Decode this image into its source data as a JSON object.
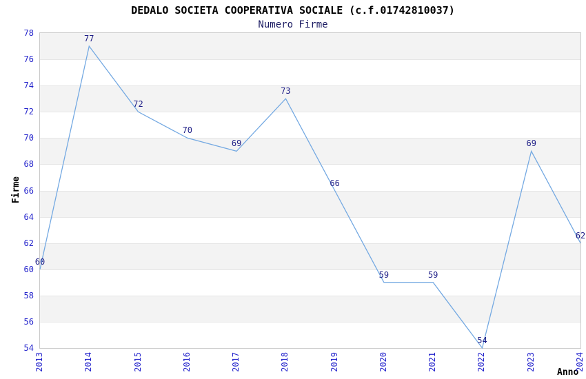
{
  "chart_data": {
    "type": "line",
    "title": "DEDALO SOCIETA COOPERATIVA SOCIALE (c.f.01742810037)",
    "subtitle": "Numero Firme",
    "xlabel": "Anno",
    "ylabel": "Firme",
    "categories": [
      "2013",
      "2014",
      "2015",
      "2016",
      "2017",
      "2018",
      "2019",
      "2020",
      "2021",
      "2022",
      "2023",
      "2024"
    ],
    "series": [
      {
        "name": "Numero Firme",
        "values": [
          60,
          77,
          72,
          70,
          69,
          73,
          66,
          59,
          59,
          54,
          69,
          62
        ]
      }
    ],
    "ylim": [
      54,
      78
    ],
    "ytick_step": 2,
    "grid": "horizontal-bands-alternating",
    "legend": "none",
    "show_point_labels": true
  },
  "colors": {
    "line": "#74a9e2",
    "axis_tick_label": "#2424cc",
    "point_label": "#1e1e87",
    "subtitle": "#1b1b62",
    "title": "#000000",
    "band_gray": "#f3f3f3",
    "band_white": "#ffffff",
    "gridline": "#e6e6e6",
    "plot_border": "#c9c9c9"
  }
}
